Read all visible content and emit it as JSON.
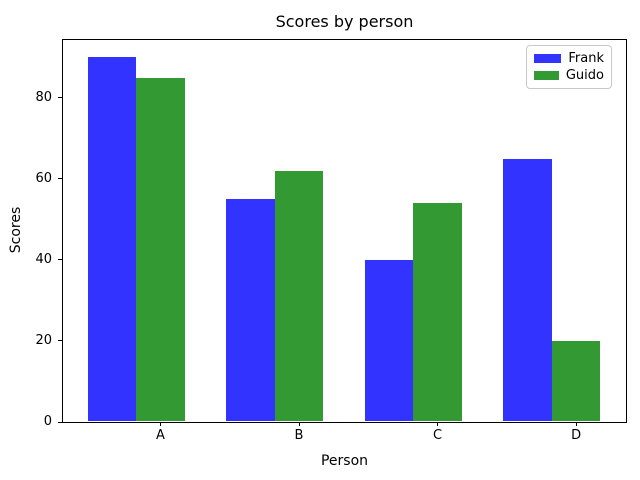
{
  "chart_data": {
    "type": "bar",
    "title": "Scores by person",
    "xlabel": "Person",
    "ylabel": "Scores",
    "categories": [
      "A",
      "B",
      "C",
      "D"
    ],
    "series": [
      {
        "name": "Frank",
        "color": "#3333ff",
        "values": [
          90,
          55,
          40,
          65
        ]
      },
      {
        "name": "Guido",
        "color": "#339a33",
        "values": [
          85,
          62,
          54,
          20
        ]
      }
    ],
    "yticks": [
      0,
      20,
      40,
      60,
      80
    ],
    "ylim": [
      0,
      94.5
    ],
    "xlim": [
      -0.36,
      3.71
    ],
    "bar_width": 0.35,
    "series_offsets": [
      0,
      0.35
    ],
    "xtick_positions": [
      0.35,
      1.35,
      2.35,
      3.35
    ],
    "grid": false,
    "legend_position": "upper right",
    "colors": {
      "spine": "#000000",
      "text": "#000000",
      "legend_border": "#c8c8c8",
      "background": "#ffffff"
    }
  }
}
